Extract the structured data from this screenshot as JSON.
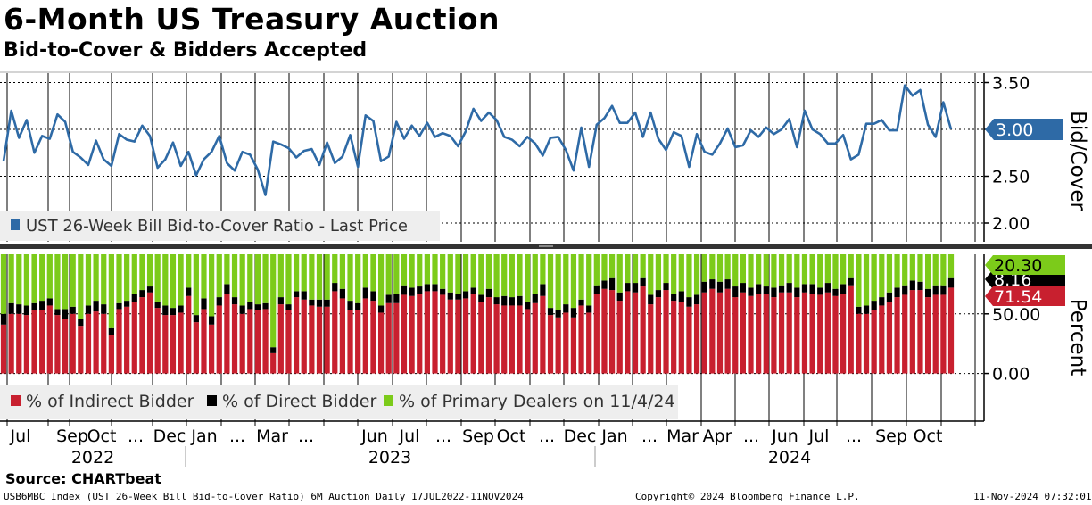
{
  "title": "6-Month US Treasury Auction",
  "subtitle": "Bid-to-Cover & Bidders Accepted",
  "source": "Source: CHARTbeat",
  "footer": {
    "left": "USB6MBC Index (UST 26-Week Bill Bid-to-Cover Ratio) 6M Auction  Daily 17JUL2022-11NOV2024",
    "center": "Copyright© 2024 Bloomberg Finance L.P.",
    "right": "11-Nov-2024 07:32:01"
  },
  "colors": {
    "line": "#2e6aa6",
    "indirect": "#c8202f",
    "direct": "#000000",
    "primary": "#7ccb1a",
    "grid": "#000000",
    "divider": "#333333",
    "legend_bg": "#eeeeee"
  },
  "chart_data": [
    {
      "type": "line",
      "ylabel": "Bid/Cover",
      "ylim": [
        1.8,
        3.6
      ],
      "yticks": [
        "3.50",
        "3.00",
        "2.50",
        "2.00"
      ],
      "ytick_values": [
        3.5,
        3.0,
        2.5,
        2.0
      ],
      "last_value_label": "3.00",
      "legend_placement": "bottom-left",
      "series": [
        {
          "name": "UST 26-Week Bill Bid-to-Cover Ratio - Last Price",
          "values": [
            2.66,
            3.2,
            2.91,
            3.1,
            2.75,
            2.93,
            2.9,
            3.16,
            3.08,
            2.76,
            2.7,
            2.62,
            2.88,
            2.68,
            2.61,
            2.95,
            2.89,
            2.87,
            3.04,
            2.93,
            2.59,
            2.68,
            2.86,
            2.61,
            2.76,
            2.51,
            2.68,
            2.76,
            2.93,
            2.64,
            2.56,
            2.76,
            2.73,
            2.57,
            2.3,
            2.87,
            2.84,
            2.8,
            2.7,
            2.77,
            2.79,
            2.62,
            2.86,
            2.64,
            2.71,
            2.94,
            2.6,
            3.15,
            3.09,
            2.66,
            2.71,
            3.08,
            2.9,
            3.04,
            2.93,
            3.07,
            2.92,
            2.96,
            2.93,
            2.82,
            2.98,
            3.22,
            3.09,
            3.18,
            3.1,
            2.92,
            2.89,
            2.82,
            2.92,
            2.85,
            2.72,
            2.91,
            2.92,
            2.78,
            2.56,
            3.02,
            2.6,
            3.05,
            3.12,
            3.25,
            3.07,
            3.07,
            3.18,
            2.92,
            3.18,
            2.9,
            2.78,
            2.97,
            2.93,
            2.6,
            2.95,
            2.76,
            2.73,
            2.85,
            3.01,
            2.81,
            2.83,
            2.99,
            2.92,
            3.02,
            2.95,
            3.0,
            3.11,
            2.81,
            3.2,
            3.0,
            2.95,
            2.85,
            2.85,
            2.94,
            2.68,
            2.73,
            3.06,
            3.06,
            3.1,
            2.99,
            2.99,
            3.47,
            3.36,
            3.42,
            3.05,
            2.92,
            3.29,
            3.0
          ]
        }
      ]
    },
    {
      "type": "bar",
      "stacked": true,
      "ylabel": "Percent",
      "ylim": [
        -40,
        100
      ],
      "yticks": [
        "50.00",
        "0.00"
      ],
      "ytick_values": [
        50,
        0
      ],
      "last_value_labels": [
        "20.30",
        "8.16",
        "71.54"
      ],
      "legend_placement": "bottom-left",
      "date_label": "11/4/24",
      "series": [
        {
          "name": "% of Indirect Bidder",
          "values": [
            41,
            50,
            50,
            49,
            53,
            53,
            57,
            49,
            46,
            50,
            40,
            50,
            52,
            50,
            32,
            54,
            56,
            60,
            64,
            68,
            55,
            49,
            49,
            51,
            65,
            43,
            54,
            41,
            57,
            67,
            58,
            50,
            54,
            53,
            54,
            17,
            58,
            53,
            64,
            62,
            57,
            56,
            56,
            69,
            63,
            53,
            53,
            63,
            61,
            51,
            59,
            59,
            66,
            65,
            67,
            69,
            69,
            66,
            62,
            62,
            63,
            67,
            60,
            64,
            58,
            57,
            57,
            57,
            54,
            59,
            65,
            49,
            47,
            51,
            47,
            57,
            51,
            67,
            71,
            70,
            61,
            69,
            68,
            73,
            58,
            64,
            70,
            61,
            60,
            56,
            58,
            68,
            71,
            68,
            71,
            64,
            68,
            65,
            67,
            67,
            64,
            68,
            68,
            64,
            68,
            67,
            66,
            68,
            65,
            67,
            74,
            50,
            50,
            53,
            57,
            60,
            64,
            66,
            70,
            70,
            64,
            66,
            66,
            72
          ]
        },
        {
          "name": "% of Direct Bidder",
          "values": [
            9,
            9,
            8,
            8,
            6,
            8,
            6,
            5,
            8,
            6,
            6,
            7,
            9,
            8,
            6,
            5,
            5,
            7,
            6,
            5,
            5,
            8,
            6,
            6,
            7,
            6,
            9,
            7,
            7,
            8,
            6,
            7,
            6,
            5,
            5,
            5,
            6,
            5,
            5,
            7,
            5,
            6,
            6,
            7,
            8,
            8,
            6,
            9,
            8,
            6,
            7,
            8,
            8,
            7,
            6,
            6,
            6,
            5,
            6,
            5,
            6,
            5,
            6,
            7,
            6,
            8,
            7,
            8,
            6,
            8,
            10,
            6,
            6,
            7,
            8,
            5,
            6,
            7,
            7,
            10,
            7,
            7,
            8,
            7,
            8,
            6,
            6,
            6,
            9,
            8,
            8,
            9,
            8,
            9,
            8,
            9,
            8,
            7,
            8,
            6,
            8,
            6,
            8,
            8,
            7,
            8,
            6,
            8,
            6,
            8,
            6,
            6,
            7,
            8,
            7,
            8,
            8,
            8,
            8,
            7,
            7,
            8,
            8,
            8
          ]
        },
        {
          "name": "% of Primary Dealers on 11/4/24",
          "values": [
            50,
            41,
            42,
            43,
            41,
            39,
            37,
            46,
            46,
            44,
            54,
            43,
            39,
            42,
            62,
            41,
            39,
            33,
            30,
            27,
            40,
            43,
            45,
            43,
            28,
            51,
            37,
            52,
            36,
            25,
            36,
            43,
            40,
            42,
            41,
            78,
            36,
            42,
            31,
            31,
            38,
            38,
            38,
            24,
            29,
            39,
            41,
            28,
            31,
            43,
            34,
            33,
            26,
            28,
            27,
            25,
            25,
            29,
            32,
            33,
            31,
            28,
            34,
            29,
            36,
            35,
            36,
            35,
            40,
            33,
            25,
            45,
            47,
            42,
            45,
            38,
            43,
            26,
            22,
            20,
            32,
            24,
            24,
            20,
            34,
            30,
            24,
            33,
            31,
            36,
            34,
            23,
            21,
            23,
            21,
            27,
            24,
            28,
            25,
            27,
            28,
            26,
            24,
            28,
            25,
            25,
            28,
            24,
            29,
            25,
            20,
            44,
            43,
            39,
            36,
            32,
            28,
            26,
            22,
            23,
            29,
            26,
            26,
            20
          ]
        }
      ]
    }
  ],
  "x_axis": {
    "month_labels": [
      "Jul",
      "Sep",
      "Oct",
      "...",
      "Dec",
      "Jan",
      "...",
      "Mar",
      "...",
      "Jun",
      "Jul",
      "...",
      "Sep",
      "Oct",
      "...",
      "Dec",
      "Jan",
      "...",
      "Mar",
      "Apr",
      "...",
      "Jun",
      "Jul",
      "...",
      "Sep",
      "Oct"
    ],
    "year_labels": [
      "2022",
      "2023",
      "2024"
    ]
  }
}
